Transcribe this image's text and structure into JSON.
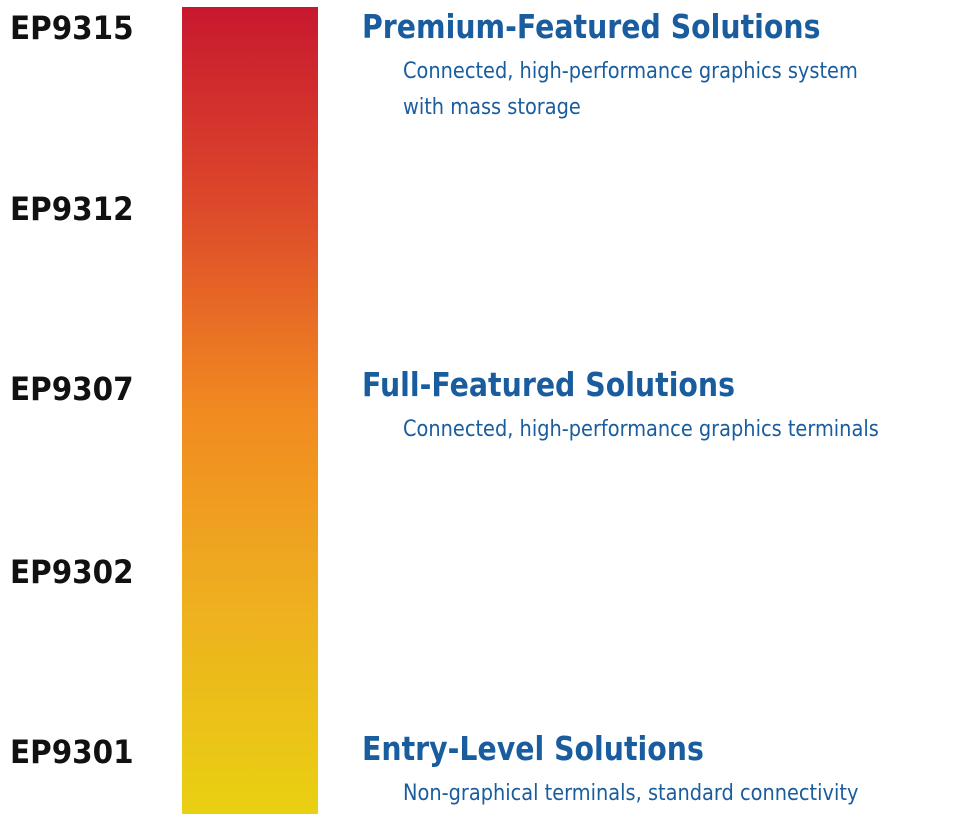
{
  "models": [
    {
      "label": "EP9315"
    },
    {
      "label": "EP9312"
    },
    {
      "label": "EP9307"
    },
    {
      "label": "EP9302"
    },
    {
      "label": "EP9301"
    }
  ],
  "scale_bar": {
    "top_color": "#c8182f",
    "mid_color": "#f18a21",
    "bottom_color": "#e9d012"
  },
  "tiers": [
    {
      "title": "Premium-Featured Solutions",
      "description_lines": [
        "Connected, high-performance graphics system",
        "with mass storage"
      ]
    },
    {
      "title": "Full-Featured Solutions",
      "description_lines": [
        "Connected, high-performance graphics terminals"
      ]
    },
    {
      "title": "Entry-Level Solutions",
      "description_lines": [
        "Non-graphical terminals, standard connectivity"
      ]
    }
  ],
  "colors": {
    "model_text": "#111111",
    "tier_text": "#1a5d9e"
  }
}
